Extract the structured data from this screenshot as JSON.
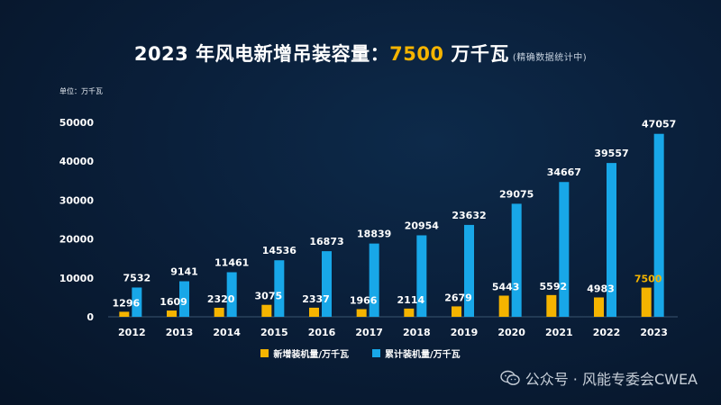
{
  "title": {
    "prefix": "2023 年风电新增吊装容量：",
    "value": "7500",
    "suffix": " 万千瓦",
    "note": "(精确数据统计中)"
  },
  "unit_label": "单位：万千瓦",
  "watermark": {
    "text": "公众号 · 风能专委会CWEA",
    "icon": "wechat-icon"
  },
  "colors": {
    "new": "#f5b400",
    "cumulative": "#18a7e8",
    "highlight_label": "#f5b400",
    "background": "#0a1f3a"
  },
  "chart_data": {
    "type": "bar",
    "title": "2023 年风电新增吊装容量：7500 万千瓦",
    "ylabel": "单位：万千瓦",
    "xlabel": "",
    "ylim": [
      0,
      50000
    ],
    "yticks": [
      0,
      10000,
      20000,
      30000,
      40000,
      50000
    ],
    "grid": false,
    "legend_position": "bottom",
    "categories": [
      "2012",
      "2013",
      "2014",
      "2015",
      "2016",
      "2017",
      "2018",
      "2019",
      "2020",
      "2021",
      "2022",
      "2023"
    ],
    "series": [
      {
        "name": "新增装机量/万千瓦",
        "values": [
          1296,
          1609,
          2320,
          3075,
          2337,
          1966,
          2114,
          2679,
          5443,
          5592,
          4983,
          7500
        ]
      },
      {
        "name": "累计装机量/万千瓦",
        "values": [
          7532,
          9141,
          11461,
          14536,
          16873,
          18839,
          20954,
          23632,
          29075,
          34667,
          39557,
          47057
        ]
      }
    ]
  }
}
